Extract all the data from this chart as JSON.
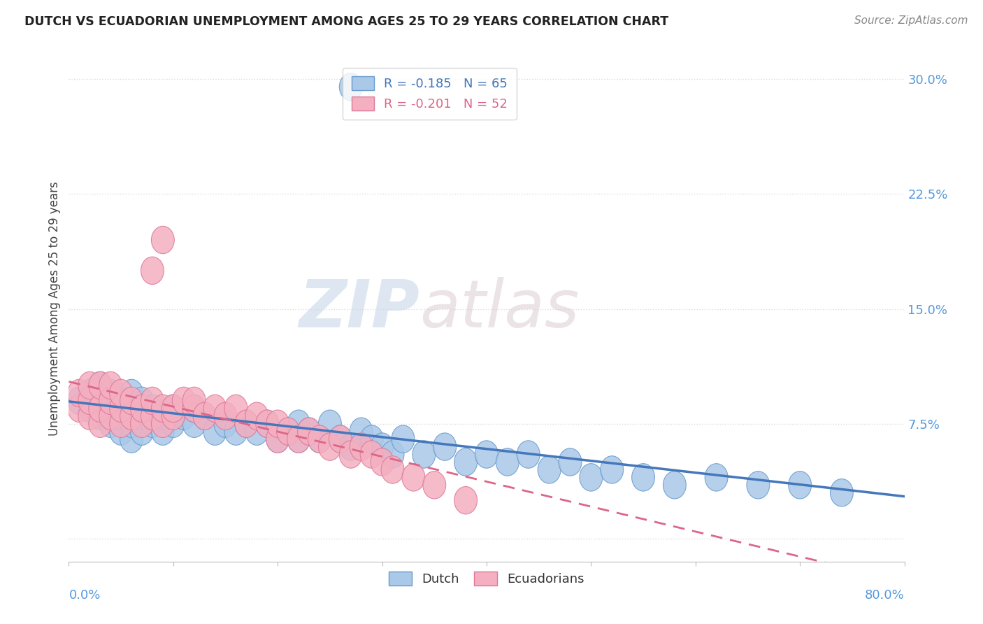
{
  "title": "DUTCH VS ECUADORIAN UNEMPLOYMENT AMONG AGES 25 TO 29 YEARS CORRELATION CHART",
  "source": "Source: ZipAtlas.com",
  "ylabel": "Unemployment Among Ages 25 to 29 years",
  "y_ticks": [
    0.0,
    0.075,
    0.15,
    0.225,
    0.3
  ],
  "y_tick_labels": [
    "",
    "7.5%",
    "15.0%",
    "22.5%",
    "30.0%"
  ],
  "x_lim": [
    0.0,
    0.8
  ],
  "y_lim": [
    -0.015,
    0.315
  ],
  "dutch_R": -0.185,
  "dutch_N": 65,
  "ecuadorian_R": -0.201,
  "ecuadorian_N": 52,
  "dutch_color": "#aac8e8",
  "ecuadorian_color": "#f4afc0",
  "dutch_edge_color": "#6699cc",
  "ecuadorian_edge_color": "#dd7799",
  "dutch_line_color": "#4477bb",
  "ecuadorian_line_color": "#dd6688",
  "watermark_color": "#e0e8f0",
  "tick_label_color": "#5599dd",
  "title_color": "#222222",
  "source_color": "#888888",
  "ylabel_color": "#444444",
  "legend_label_color": "#dd4444",
  "background_color": "#ffffff",
  "grid_color": "#dddddd",
  "dutch_x": [
    0.01,
    0.02,
    0.02,
    0.03,
    0.03,
    0.04,
    0.04,
    0.04,
    0.05,
    0.05,
    0.05,
    0.06,
    0.06,
    0.06,
    0.06,
    0.07,
    0.07,
    0.07,
    0.08,
    0.08,
    0.09,
    0.09,
    0.1,
    0.1,
    0.11,
    0.12,
    0.12,
    0.13,
    0.14,
    0.15,
    0.16,
    0.17,
    0.18,
    0.19,
    0.2,
    0.21,
    0.22,
    0.22,
    0.23,
    0.24,
    0.25,
    0.26,
    0.27,
    0.28,
    0.29,
    0.3,
    0.31,
    0.32,
    0.34,
    0.36,
    0.38,
    0.4,
    0.42,
    0.44,
    0.46,
    0.48,
    0.5,
    0.52,
    0.55,
    0.58,
    0.62,
    0.66,
    0.7,
    0.74,
    0.27
  ],
  "dutch_y": [
    0.09,
    0.085,
    0.095,
    0.08,
    0.1,
    0.075,
    0.085,
    0.095,
    0.07,
    0.08,
    0.09,
    0.065,
    0.075,
    0.085,
    0.095,
    0.07,
    0.08,
    0.09,
    0.075,
    0.085,
    0.07,
    0.08,
    0.075,
    0.085,
    0.08,
    0.075,
    0.085,
    0.08,
    0.07,
    0.075,
    0.07,
    0.075,
    0.07,
    0.075,
    0.065,
    0.07,
    0.065,
    0.075,
    0.07,
    0.065,
    0.075,
    0.065,
    0.06,
    0.07,
    0.065,
    0.06,
    0.055,
    0.065,
    0.055,
    0.06,
    0.05,
    0.055,
    0.05,
    0.055,
    0.045,
    0.05,
    0.04,
    0.045,
    0.04,
    0.035,
    0.04,
    0.035,
    0.035,
    0.03,
    0.295
  ],
  "ecuadorian_x": [
    0.01,
    0.01,
    0.02,
    0.02,
    0.02,
    0.03,
    0.03,
    0.03,
    0.04,
    0.04,
    0.04,
    0.05,
    0.05,
    0.05,
    0.06,
    0.06,
    0.07,
    0.07,
    0.08,
    0.08,
    0.09,
    0.09,
    0.1,
    0.1,
    0.11,
    0.12,
    0.12,
    0.13,
    0.14,
    0.15,
    0.16,
    0.17,
    0.18,
    0.19,
    0.2,
    0.2,
    0.21,
    0.22,
    0.23,
    0.24,
    0.25,
    0.26,
    0.27,
    0.28,
    0.29,
    0.3,
    0.31,
    0.33,
    0.35,
    0.38,
    0.08,
    0.09
  ],
  "ecuadorian_y": [
    0.085,
    0.095,
    0.08,
    0.09,
    0.1,
    0.075,
    0.085,
    0.1,
    0.08,
    0.09,
    0.1,
    0.075,
    0.085,
    0.095,
    0.08,
    0.09,
    0.075,
    0.085,
    0.08,
    0.09,
    0.075,
    0.085,
    0.08,
    0.085,
    0.09,
    0.085,
    0.09,
    0.08,
    0.085,
    0.08,
    0.085,
    0.075,
    0.08,
    0.075,
    0.065,
    0.075,
    0.07,
    0.065,
    0.07,
    0.065,
    0.06,
    0.065,
    0.055,
    0.06,
    0.055,
    0.05,
    0.045,
    0.04,
    0.035,
    0.025,
    0.175,
    0.195
  ]
}
